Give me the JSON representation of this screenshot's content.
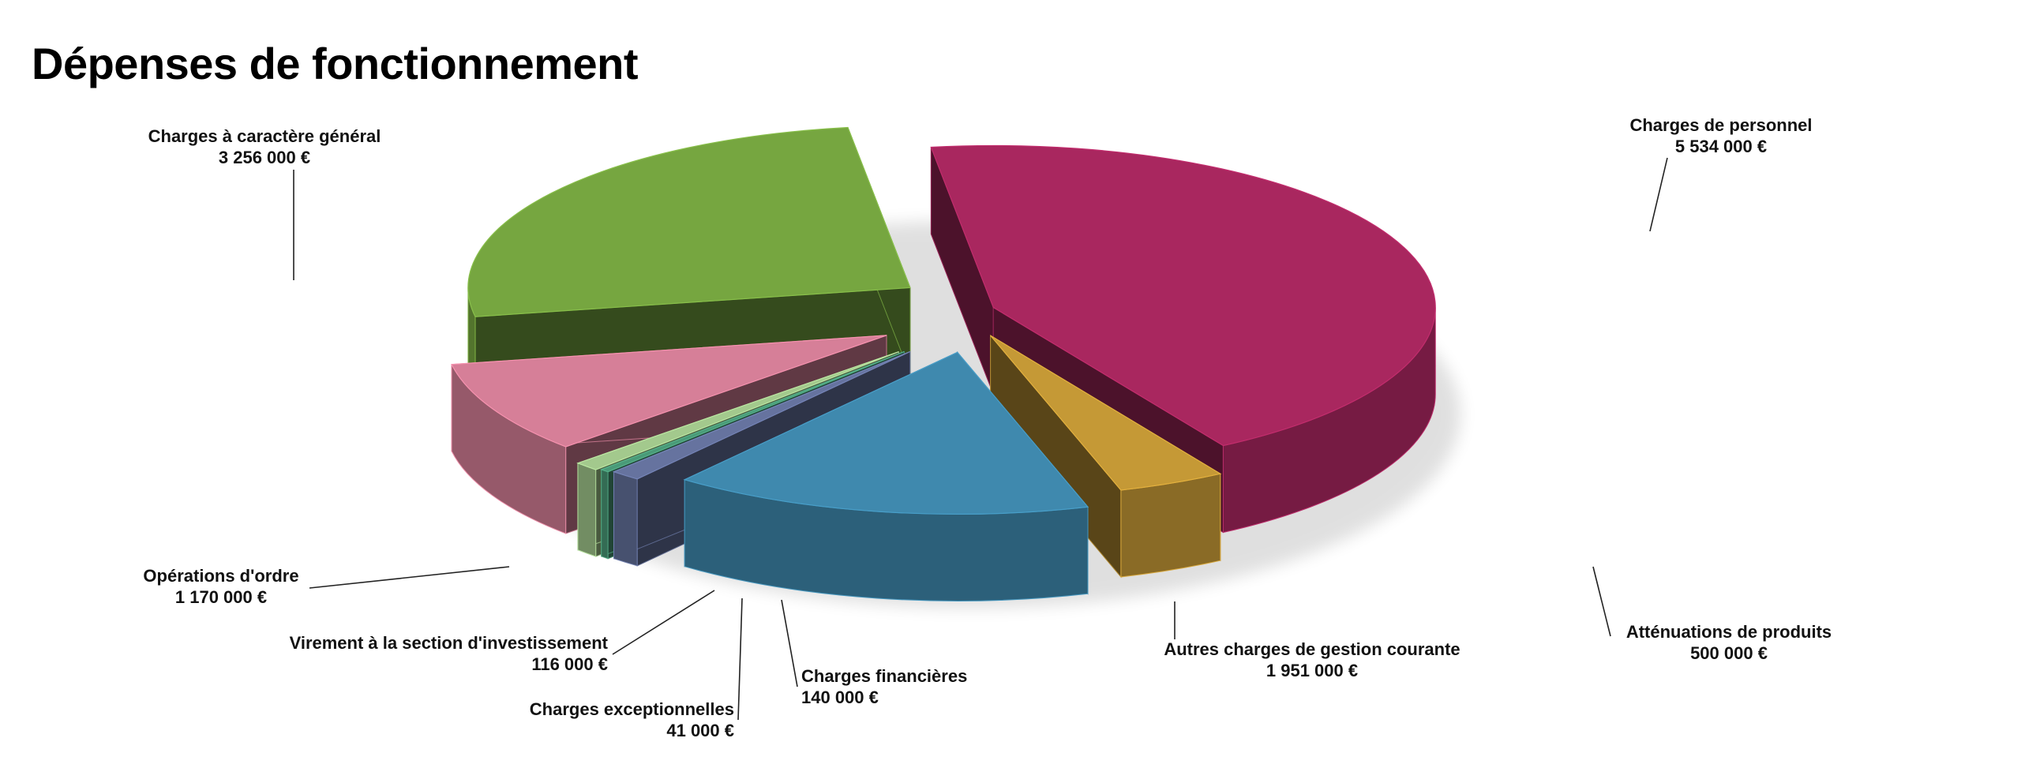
{
  "title": "Dépenses de fonctionnement",
  "chart_data": {
    "type": "pie",
    "style": "3d-exploded",
    "currency_symbol": "€",
    "slices": [
      {
        "label": "Charges de personnel",
        "value": 5534000,
        "value_label": "5 534 000 €",
        "color": "#a9275f"
      },
      {
        "label": "Atténuations de produits",
        "value": 500000,
        "value_label": "500 000 €",
        "color": "#c59936"
      },
      {
        "label": "Autres charges de gestion courante",
        "value": 1951000,
        "value_label": "1 951 000 €",
        "color": "#3f89ae"
      },
      {
        "label": "Charges financières",
        "value": 140000,
        "value_label": "140 000 €",
        "color": "#66739f"
      },
      {
        "label": "Charges exceptionnelles",
        "value": 41000,
        "value_label": "41 000 €",
        "color": "#4a9a78"
      },
      {
        "label": "Virement à la section d'investissement",
        "value": 116000,
        "value_label": "116 000 €",
        "color": "#a3c98d"
      },
      {
        "label": "Opérations d'ordre",
        "value": 1170000,
        "value_label": "1 170 000 €",
        "color": "#d67f98"
      },
      {
        "label": "Charges à caractère général",
        "value": 3256000,
        "value_label": "3 256 000 €",
        "color": "#76a640"
      }
    ]
  }
}
